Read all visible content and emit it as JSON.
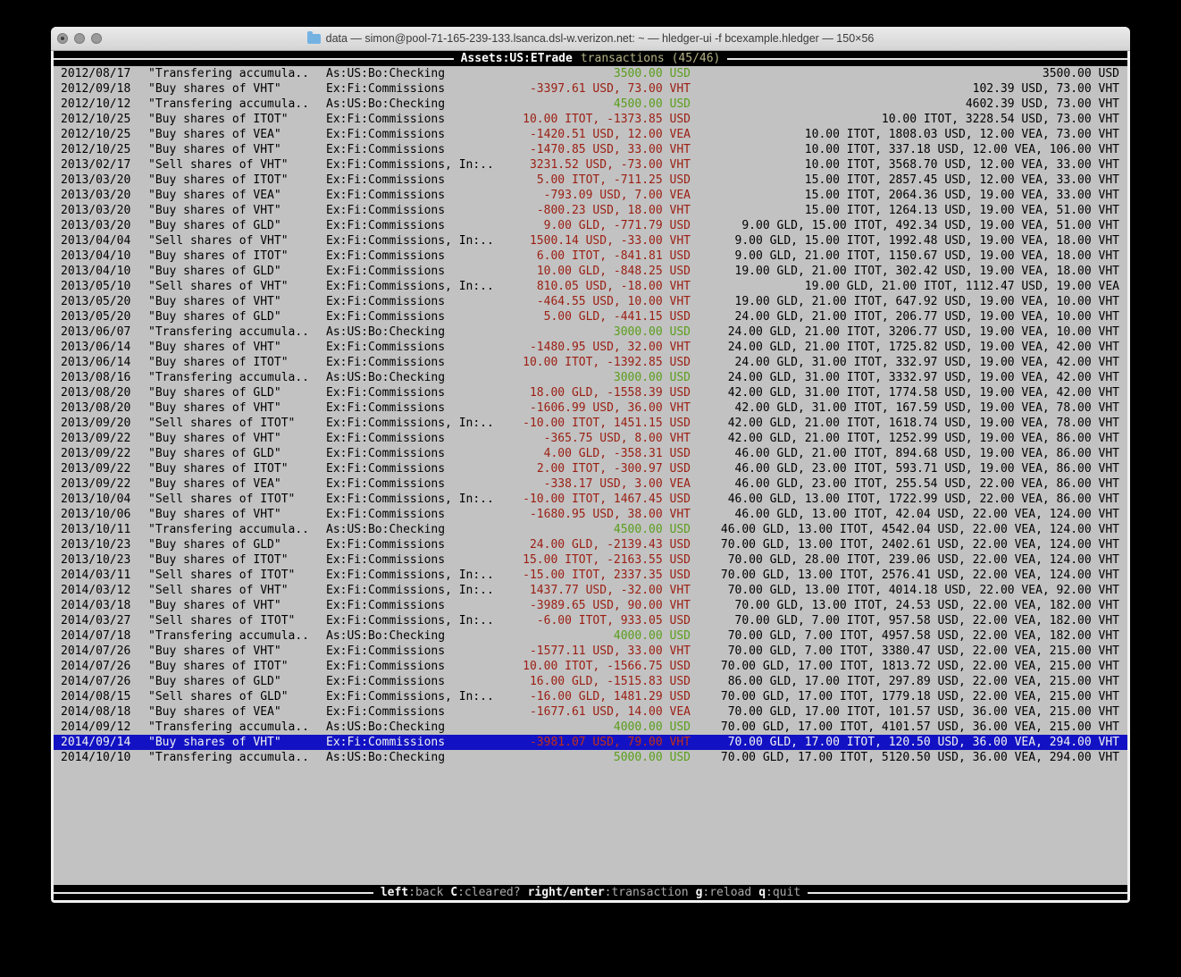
{
  "window": {
    "title": "data — simon@pool-71-165-239-133.lsanca.dsl-w.verizon.net: ~ — hledger-ui -f bcexample.hledger — 150×56"
  },
  "header": {
    "account": "Assets:US:ETrade",
    "suffix": "transactions (45/46)"
  },
  "footer": {
    "keys": [
      {
        "key": "left",
        "desc": ":back"
      },
      {
        "key": "C",
        "desc": ":cleared?"
      },
      {
        "key": "right/enter",
        "desc": ":transaction"
      },
      {
        "key": "g",
        "desc": ":reload"
      },
      {
        "key": "q",
        "desc": ":quit"
      }
    ]
  },
  "colors": {
    "bg_terminal": "#c2c2c2",
    "bar_bg": "#000000",
    "rule": "#e6e6e6",
    "red": "#9b1e12",
    "green": "#5a9e1c",
    "selected_bg": "#1212c4",
    "selected_fg": "#f2f2f2",
    "selected_red": "#c03018",
    "header_account_fg": "#ffffff",
    "header_suffix_fg": "#b6b387",
    "footer_key_fg": "#f5f5f5",
    "footer_desc_fg": "#aaaaaa"
  },
  "transactions": [
    {
      "date": "2012/08/17",
      "description": "\"Transfering accumula..",
      "account": "As:US:Bo:Checking",
      "change": "3500.00 USD",
      "change_positive": true,
      "balance": "3500.00 USD",
      "selected": false
    },
    {
      "date": "2012/09/18",
      "description": "\"Buy shares of VHT\"",
      "account": "Ex:Fi:Commissions",
      "change": "-3397.61 USD, 73.00 VHT",
      "change_positive": false,
      "balance": "102.39 USD, 73.00 VHT",
      "selected": false
    },
    {
      "date": "2012/10/12",
      "description": "\"Transfering accumula..",
      "account": "As:US:Bo:Checking",
      "change": "4500.00 USD",
      "change_positive": true,
      "balance": "4602.39 USD, 73.00 VHT",
      "selected": false
    },
    {
      "date": "2012/10/25",
      "description": "\"Buy shares of ITOT\"",
      "account": "Ex:Fi:Commissions",
      "change": "10.00 ITOT, -1373.85 USD",
      "change_positive": false,
      "balance": "10.00 ITOT, 3228.54 USD, 73.00 VHT",
      "selected": false
    },
    {
      "date": "2012/10/25",
      "description": "\"Buy shares of VEA\"",
      "account": "Ex:Fi:Commissions",
      "change": "-1420.51 USD, 12.00 VEA",
      "change_positive": false,
      "balance": "10.00 ITOT, 1808.03 USD, 12.00 VEA, 73.00 VHT",
      "selected": false
    },
    {
      "date": "2012/10/25",
      "description": "\"Buy shares of VHT\"",
      "account": "Ex:Fi:Commissions",
      "change": "-1470.85 USD, 33.00 VHT",
      "change_positive": false,
      "balance": "10.00 ITOT, 337.18 USD, 12.00 VEA, 106.00 VHT",
      "selected": false
    },
    {
      "date": "2013/02/17",
      "description": "\"Sell shares of VHT\"",
      "account": "Ex:Fi:Commissions, In:..",
      "change": "3231.52 USD, -73.00 VHT",
      "change_positive": false,
      "balance": "10.00 ITOT, 3568.70 USD, 12.00 VEA, 33.00 VHT",
      "selected": false
    },
    {
      "date": "2013/03/20",
      "description": "\"Buy shares of ITOT\"",
      "account": "Ex:Fi:Commissions",
      "change": "5.00 ITOT, -711.25 USD",
      "change_positive": false,
      "balance": "15.00 ITOT, 2857.45 USD, 12.00 VEA, 33.00 VHT",
      "selected": false
    },
    {
      "date": "2013/03/20",
      "description": "\"Buy shares of VEA\"",
      "account": "Ex:Fi:Commissions",
      "change": "-793.09 USD, 7.00 VEA",
      "change_positive": false,
      "balance": "15.00 ITOT, 2064.36 USD, 19.00 VEA, 33.00 VHT",
      "selected": false
    },
    {
      "date": "2013/03/20",
      "description": "\"Buy shares of VHT\"",
      "account": "Ex:Fi:Commissions",
      "change": "-800.23 USD, 18.00 VHT",
      "change_positive": false,
      "balance": "15.00 ITOT, 1264.13 USD, 19.00 VEA, 51.00 VHT",
      "selected": false
    },
    {
      "date": "2013/03/20",
      "description": "\"Buy shares of GLD\"",
      "account": "Ex:Fi:Commissions",
      "change": "9.00 GLD, -771.79 USD",
      "change_positive": false,
      "balance": "9.00 GLD, 15.00 ITOT, 492.34 USD, 19.00 VEA, 51.00 VHT",
      "selected": false
    },
    {
      "date": "2013/04/04",
      "description": "\"Sell shares of VHT\"",
      "account": "Ex:Fi:Commissions, In:..",
      "change": "1500.14 USD, -33.00 VHT",
      "change_positive": false,
      "balance": "9.00 GLD, 15.00 ITOT, 1992.48 USD, 19.00 VEA, 18.00 VHT",
      "selected": false
    },
    {
      "date": "2013/04/10",
      "description": "\"Buy shares of ITOT\"",
      "account": "Ex:Fi:Commissions",
      "change": "6.00 ITOT, -841.81 USD",
      "change_positive": false,
      "balance": "9.00 GLD, 21.00 ITOT, 1150.67 USD, 19.00 VEA, 18.00 VHT",
      "selected": false
    },
    {
      "date": "2013/04/10",
      "description": "\"Buy shares of GLD\"",
      "account": "Ex:Fi:Commissions",
      "change": "10.00 GLD, -848.25 USD",
      "change_positive": false,
      "balance": "19.00 GLD, 21.00 ITOT, 302.42 USD, 19.00 VEA, 18.00 VHT",
      "selected": false
    },
    {
      "date": "2013/05/10",
      "description": "\"Sell shares of VHT\"",
      "account": "Ex:Fi:Commissions, In:..",
      "change": "810.05 USD, -18.00 VHT",
      "change_positive": false,
      "balance": "19.00 GLD, 21.00 ITOT, 1112.47 USD, 19.00 VEA",
      "selected": false
    },
    {
      "date": "2013/05/20",
      "description": "\"Buy shares of VHT\"",
      "account": "Ex:Fi:Commissions",
      "change": "-464.55 USD, 10.00 VHT",
      "change_positive": false,
      "balance": "19.00 GLD, 21.00 ITOT, 647.92 USD, 19.00 VEA, 10.00 VHT",
      "selected": false
    },
    {
      "date": "2013/05/20",
      "description": "\"Buy shares of GLD\"",
      "account": "Ex:Fi:Commissions",
      "change": "5.00 GLD, -441.15 USD",
      "change_positive": false,
      "balance": "24.00 GLD, 21.00 ITOT, 206.77 USD, 19.00 VEA, 10.00 VHT",
      "selected": false
    },
    {
      "date": "2013/06/07",
      "description": "\"Transfering accumula..",
      "account": "As:US:Bo:Checking",
      "change": "3000.00 USD",
      "change_positive": true,
      "balance": "24.00 GLD, 21.00 ITOT, 3206.77 USD, 19.00 VEA, 10.00 VHT",
      "selected": false
    },
    {
      "date": "2013/06/14",
      "description": "\"Buy shares of VHT\"",
      "account": "Ex:Fi:Commissions",
      "change": "-1480.95 USD, 32.00 VHT",
      "change_positive": false,
      "balance": "24.00 GLD, 21.00 ITOT, 1725.82 USD, 19.00 VEA, 42.00 VHT",
      "selected": false
    },
    {
      "date": "2013/06/14",
      "description": "\"Buy shares of ITOT\"",
      "account": "Ex:Fi:Commissions",
      "change": "10.00 ITOT, -1392.85 USD",
      "change_positive": false,
      "balance": "24.00 GLD, 31.00 ITOT, 332.97 USD, 19.00 VEA, 42.00 VHT",
      "selected": false
    },
    {
      "date": "2013/08/16",
      "description": "\"Transfering accumula..",
      "account": "As:US:Bo:Checking",
      "change": "3000.00 USD",
      "change_positive": true,
      "balance": "24.00 GLD, 31.00 ITOT, 3332.97 USD, 19.00 VEA, 42.00 VHT",
      "selected": false
    },
    {
      "date": "2013/08/20",
      "description": "\"Buy shares of GLD\"",
      "account": "Ex:Fi:Commissions",
      "change": "18.00 GLD, -1558.39 USD",
      "change_positive": false,
      "balance": "42.00 GLD, 31.00 ITOT, 1774.58 USD, 19.00 VEA, 42.00 VHT",
      "selected": false
    },
    {
      "date": "2013/08/20",
      "description": "\"Buy shares of VHT\"",
      "account": "Ex:Fi:Commissions",
      "change": "-1606.99 USD, 36.00 VHT",
      "change_positive": false,
      "balance": "42.00 GLD, 31.00 ITOT, 167.59 USD, 19.00 VEA, 78.00 VHT",
      "selected": false
    },
    {
      "date": "2013/09/20",
      "description": "\"Sell shares of ITOT\"",
      "account": "Ex:Fi:Commissions, In:..",
      "change": "-10.00 ITOT, 1451.15 USD",
      "change_positive": false,
      "balance": "42.00 GLD, 21.00 ITOT, 1618.74 USD, 19.00 VEA, 78.00 VHT",
      "selected": false
    },
    {
      "date": "2013/09/22",
      "description": "\"Buy shares of VHT\"",
      "account": "Ex:Fi:Commissions",
      "change": "-365.75 USD, 8.00 VHT",
      "change_positive": false,
      "balance": "42.00 GLD, 21.00 ITOT, 1252.99 USD, 19.00 VEA, 86.00 VHT",
      "selected": false
    },
    {
      "date": "2013/09/22",
      "description": "\"Buy shares of GLD\"",
      "account": "Ex:Fi:Commissions",
      "change": "4.00 GLD, -358.31 USD",
      "change_positive": false,
      "balance": "46.00 GLD, 21.00 ITOT, 894.68 USD, 19.00 VEA, 86.00 VHT",
      "selected": false
    },
    {
      "date": "2013/09/22",
      "description": "\"Buy shares of ITOT\"",
      "account": "Ex:Fi:Commissions",
      "change": "2.00 ITOT, -300.97 USD",
      "change_positive": false,
      "balance": "46.00 GLD, 23.00 ITOT, 593.71 USD, 19.00 VEA, 86.00 VHT",
      "selected": false
    },
    {
      "date": "2013/09/22",
      "description": "\"Buy shares of VEA\"",
      "account": "Ex:Fi:Commissions",
      "change": "-338.17 USD, 3.00 VEA",
      "change_positive": false,
      "balance": "46.00 GLD, 23.00 ITOT, 255.54 USD, 22.00 VEA, 86.00 VHT",
      "selected": false
    },
    {
      "date": "2013/10/04",
      "description": "\"Sell shares of ITOT\"",
      "account": "Ex:Fi:Commissions, In:..",
      "change": "-10.00 ITOT, 1467.45 USD",
      "change_positive": false,
      "balance": "46.00 GLD, 13.00 ITOT, 1722.99 USD, 22.00 VEA, 86.00 VHT",
      "selected": false
    },
    {
      "date": "2013/10/06",
      "description": "\"Buy shares of VHT\"",
      "account": "Ex:Fi:Commissions",
      "change": "-1680.95 USD, 38.00 VHT",
      "change_positive": false,
      "balance": "46.00 GLD, 13.00 ITOT, 42.04 USD, 22.00 VEA, 124.00 VHT",
      "selected": false
    },
    {
      "date": "2013/10/11",
      "description": "\"Transfering accumula..",
      "account": "As:US:Bo:Checking",
      "change": "4500.00 USD",
      "change_positive": true,
      "balance": "46.00 GLD, 13.00 ITOT, 4542.04 USD, 22.00 VEA, 124.00 VHT",
      "selected": false
    },
    {
      "date": "2013/10/23",
      "description": "\"Buy shares of GLD\"",
      "account": "Ex:Fi:Commissions",
      "change": "24.00 GLD, -2139.43 USD",
      "change_positive": false,
      "balance": "70.00 GLD, 13.00 ITOT, 2402.61 USD, 22.00 VEA, 124.00 VHT",
      "selected": false
    },
    {
      "date": "2013/10/23",
      "description": "\"Buy shares of ITOT\"",
      "account": "Ex:Fi:Commissions",
      "change": "15.00 ITOT, -2163.55 USD",
      "change_positive": false,
      "balance": "70.00 GLD, 28.00 ITOT, 239.06 USD, 22.00 VEA, 124.00 VHT",
      "selected": false
    },
    {
      "date": "2014/03/11",
      "description": "\"Sell shares of ITOT\"",
      "account": "Ex:Fi:Commissions, In:..",
      "change": "-15.00 ITOT, 2337.35 USD",
      "change_positive": false,
      "balance": "70.00 GLD, 13.00 ITOT, 2576.41 USD, 22.00 VEA, 124.00 VHT",
      "selected": false
    },
    {
      "date": "2014/03/12",
      "description": "\"Sell shares of VHT\"",
      "account": "Ex:Fi:Commissions, In:..",
      "change": "1437.77 USD, -32.00 VHT",
      "change_positive": false,
      "balance": "70.00 GLD, 13.00 ITOT, 4014.18 USD, 22.00 VEA, 92.00 VHT",
      "selected": false
    },
    {
      "date": "2014/03/18",
      "description": "\"Buy shares of VHT\"",
      "account": "Ex:Fi:Commissions",
      "change": "-3989.65 USD, 90.00 VHT",
      "change_positive": false,
      "balance": "70.00 GLD, 13.00 ITOT, 24.53 USD, 22.00 VEA, 182.00 VHT",
      "selected": false
    },
    {
      "date": "2014/03/27",
      "description": "\"Sell shares of ITOT\"",
      "account": "Ex:Fi:Commissions, In:..",
      "change": "-6.00 ITOT, 933.05 USD",
      "change_positive": false,
      "balance": "70.00 GLD, 7.00 ITOT, 957.58 USD, 22.00 VEA, 182.00 VHT",
      "selected": false
    },
    {
      "date": "2014/07/18",
      "description": "\"Transfering accumula..",
      "account": "As:US:Bo:Checking",
      "change": "4000.00 USD",
      "change_positive": true,
      "balance": "70.00 GLD, 7.00 ITOT, 4957.58 USD, 22.00 VEA, 182.00 VHT",
      "selected": false
    },
    {
      "date": "2014/07/26",
      "description": "\"Buy shares of VHT\"",
      "account": "Ex:Fi:Commissions",
      "change": "-1577.11 USD, 33.00 VHT",
      "change_positive": false,
      "balance": "70.00 GLD, 7.00 ITOT, 3380.47 USD, 22.00 VEA, 215.00 VHT",
      "selected": false
    },
    {
      "date": "2014/07/26",
      "description": "\"Buy shares of ITOT\"",
      "account": "Ex:Fi:Commissions",
      "change": "10.00 ITOT, -1566.75 USD",
      "change_positive": false,
      "balance": "70.00 GLD, 17.00 ITOT, 1813.72 USD, 22.00 VEA, 215.00 VHT",
      "selected": false
    },
    {
      "date": "2014/07/26",
      "description": "\"Buy shares of GLD\"",
      "account": "Ex:Fi:Commissions",
      "change": "16.00 GLD, -1515.83 USD",
      "change_positive": false,
      "balance": "86.00 GLD, 17.00 ITOT, 297.89 USD, 22.00 VEA, 215.00 VHT",
      "selected": false
    },
    {
      "date": "2014/08/15",
      "description": "\"Sell shares of GLD\"",
      "account": "Ex:Fi:Commissions, In:..",
      "change": "-16.00 GLD, 1481.29 USD",
      "change_positive": false,
      "balance": "70.00 GLD, 17.00 ITOT, 1779.18 USD, 22.00 VEA, 215.00 VHT",
      "selected": false
    },
    {
      "date": "2014/08/18",
      "description": "\"Buy shares of VEA\"",
      "account": "Ex:Fi:Commissions",
      "change": "-1677.61 USD, 14.00 VEA",
      "change_positive": false,
      "balance": "70.00 GLD, 17.00 ITOT, 101.57 USD, 36.00 VEA, 215.00 VHT",
      "selected": false
    },
    {
      "date": "2014/09/12",
      "description": "\"Transfering accumula..",
      "account": "As:US:Bo:Checking",
      "change": "4000.00 USD",
      "change_positive": true,
      "balance": "70.00 GLD, 17.00 ITOT, 4101.57 USD, 36.00 VEA, 215.00 VHT",
      "selected": false
    },
    {
      "date": "2014/09/14",
      "description": "\"Buy shares of VHT\"",
      "account": "Ex:Fi:Commissions",
      "change": "-3981.07 USD, 79.00 VHT",
      "change_positive": false,
      "balance": "70.00 GLD, 17.00 ITOT, 120.50 USD, 36.00 VEA, 294.00 VHT",
      "selected": true
    },
    {
      "date": "2014/10/10",
      "description": "\"Transfering accumula..",
      "account": "As:US:Bo:Checking",
      "change": "5000.00 USD",
      "change_positive": true,
      "balance": "70.00 GLD, 17.00 ITOT, 5120.50 USD, 36.00 VEA, 294.00 VHT",
      "selected": false
    }
  ]
}
